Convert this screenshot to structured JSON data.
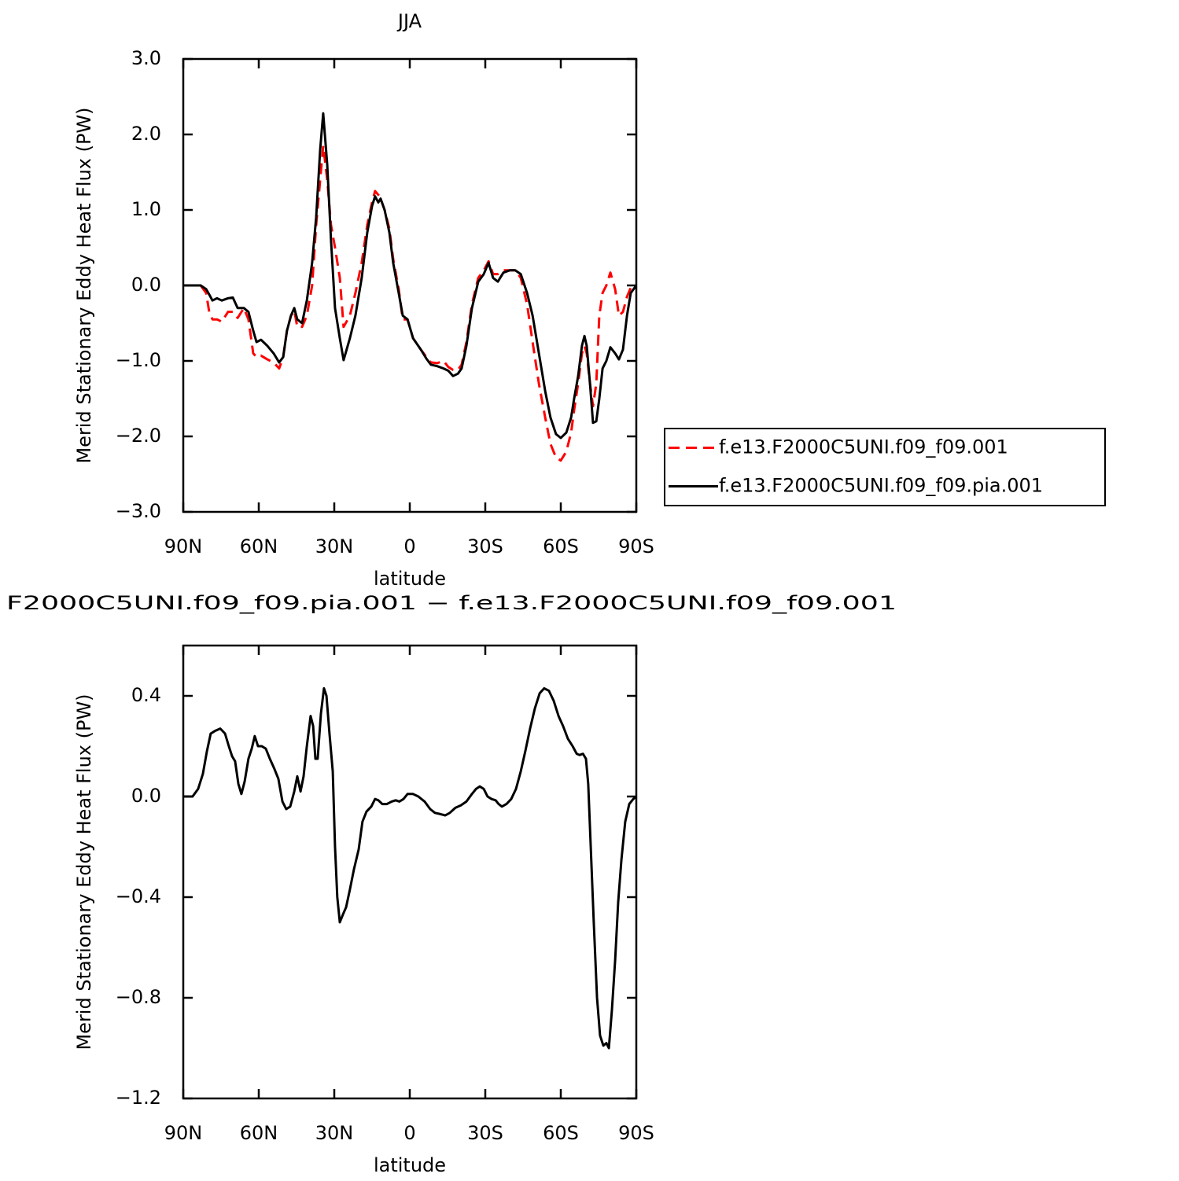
{
  "chart_data": [
    {
      "type": "line",
      "title": "JJA",
      "xlabel": "latitude",
      "ylabel": "Merid Stationary Eddy Heat Flux (PW)",
      "legend": "right",
      "xlim": [
        90,
        -90
      ],
      "ylim": [
        -3,
        3
      ],
      "xticks": [
        {
          "value": 90,
          "label": "90N"
        },
        {
          "value": 60,
          "label": "60N"
        },
        {
          "value": 30,
          "label": "30N"
        },
        0,
        {
          "value": -30,
          "label": "30S"
        },
        {
          "value": -60,
          "label": "60S"
        },
        {
          "value": -90,
          "label": "90S"
        }
      ],
      "yticks": [
        {
          "value": 3,
          "label": "3.0"
        },
        {
          "value": 2,
          "label": "2.0"
        },
        {
          "value": 1,
          "label": "1.0"
        },
        {
          "value": 0,
          "label": "0.0"
        },
        {
          "value": -1,
          "label": "−1.0"
        },
        {
          "value": -2,
          "label": "−2.0"
        },
        {
          "value": -3,
          "label": "−3.0"
        }
      ],
      "x": [
        90,
        83.1,
        80.9,
        79.7,
        78.4,
        76.6,
        74.7,
        72.2,
        70.3,
        68.4,
        65.9,
        64.1,
        62.2,
        60.9,
        59.1,
        56.6,
        54.1,
        51.9,
        50.3,
        48.8,
        47.2,
        45.9,
        44.7,
        42.8,
        40.9,
        38.8,
        37.2,
        35.6,
        34.4,
        32.8,
        31.3,
        29.7,
        27.8,
        26.3,
        23.8,
        21.6,
        19.1,
        16.9,
        15.0,
        13.8,
        12.5,
        11.6,
        10.0,
        8.1,
        6.6,
        4.4,
        2.8,
        0.9,
        -1.3,
        -4.4,
        -6.6,
        -8.4,
        -10.9,
        -13.4,
        -15.3,
        -17.2,
        -19.1,
        -20.6,
        -22.5,
        -24.7,
        -27.2,
        -29.4,
        -31.3,
        -33.1,
        -35.0,
        -37.2,
        -39.7,
        -41.9,
        -44.1,
        -46.6,
        -48.8,
        -51.3,
        -53.8,
        -55.9,
        -58.1,
        -60.0,
        -62.2,
        -64.1,
        -65.3,
        -66.9,
        -68.4,
        -69.4,
        -70.3,
        -71.6,
        -72.8,
        -74.1,
        -75.3,
        -76.6,
        -78.1,
        -79.7,
        -81.6,
        -83.1,
        -84.7,
        -86.3,
        -87.8,
        -90
      ],
      "series": [
        {
          "name": "f.e13.F2000C5UNI.f09_f09.001",
          "color": "#ff0000",
          "linestyle": "dashed",
          "values": [
            0,
            0,
            -0.1,
            -0.35,
            -0.45,
            -0.45,
            -0.48,
            -0.35,
            -0.35,
            -0.43,
            -0.3,
            -0.45,
            -0.9,
            -0.95,
            -0.93,
            -0.98,
            -1.02,
            -1.1,
            -0.95,
            -0.6,
            -0.4,
            -0.33,
            -0.55,
            -0.55,
            -0.4,
            0.0,
            0.8,
            1.4,
            1.85,
            1.4,
            0.8,
            0.5,
            0.1,
            -0.55,
            -0.4,
            -0.1,
            0.3,
            0.8,
            1.1,
            1.25,
            1.2,
            1.15,
            1.0,
            0.75,
            0.35,
            -0.05,
            -0.45,
            -0.45,
            -0.7,
            -0.85,
            -0.95,
            -1.02,
            -1.03,
            -1.0,
            -1.08,
            -1.12,
            -1.12,
            -1.05,
            -0.75,
            -0.25,
            0.1,
            0.2,
            0.32,
            0.15,
            0.15,
            0.2,
            0.2,
            0.2,
            0.1,
            -0.25,
            -0.75,
            -1.3,
            -1.75,
            -2.1,
            -2.28,
            -2.32,
            -2.2,
            -1.95,
            -1.65,
            -1.3,
            -0.9,
            -0.8,
            -0.9,
            -1.3,
            -1.6,
            -1.3,
            -0.4,
            -0.1,
            0.0,
            0.17,
            -0.05,
            -0.4,
            -0.35,
            -0.15,
            -0.03,
            0
          ]
        },
        {
          "name": "f.e13.F2000C5UNI.f09_f09.pia.001",
          "color": "#000000",
          "linestyle": "solid",
          "values": [
            0,
            0,
            -0.05,
            -0.12,
            -0.2,
            -0.17,
            -0.2,
            -0.17,
            -0.16,
            -0.3,
            -0.3,
            -0.35,
            -0.6,
            -0.75,
            -0.72,
            -0.8,
            -0.9,
            -1.02,
            -0.95,
            -0.6,
            -0.4,
            -0.3,
            -0.45,
            -0.5,
            -0.2,
            0.3,
            0.9,
            1.8,
            2.28,
            1.6,
            0.6,
            -0.3,
            -0.7,
            -0.99,
            -0.7,
            -0.4,
            0.1,
            0.7,
            1.05,
            1.18,
            1.1,
            1.15,
            1.0,
            0.7,
            0.3,
            -0.1,
            -0.4,
            -0.45,
            -0.7,
            -0.85,
            -0.97,
            -1.05,
            -1.07,
            -1.1,
            -1.13,
            -1.2,
            -1.17,
            -1.1,
            -0.8,
            -0.3,
            0.05,
            0.15,
            0.3,
            0.1,
            0.05,
            0.17,
            0.2,
            0.2,
            0.15,
            -0.1,
            -0.4,
            -0.9,
            -1.4,
            -1.75,
            -1.97,
            -2.02,
            -1.95,
            -1.75,
            -1.5,
            -1.2,
            -0.8,
            -0.67,
            -0.8,
            -1.3,
            -1.82,
            -1.8,
            -1.5,
            -1.1,
            -1.0,
            -0.82,
            -0.9,
            -0.98,
            -0.85,
            -0.4,
            -0.1,
            0
          ]
        }
      ]
    },
    {
      "type": "line",
      "title": "F2000C5UNI.f09_f09.pia.001 − f.e13.F2000C5UNI.f09_f09.001",
      "xlabel": "latitude",
      "ylabel": "Merid Stationary Eddy Heat Flux (PW)",
      "xlim": [
        90,
        -90
      ],
      "ylim": [
        -1.2,
        0.6
      ],
      "xticks": [
        {
          "value": 90,
          "label": "90N"
        },
        {
          "value": 60,
          "label": "60N"
        },
        {
          "value": 30,
          "label": "30N"
        },
        0,
        {
          "value": -30,
          "label": "30S"
        },
        {
          "value": -60,
          "label": "60S"
        },
        {
          "value": -90,
          "label": "90S"
        }
      ],
      "yticks": [
        0.4,
        {
          "value": 0,
          "label": "0.0"
        },
        {
          "value": -0.4,
          "label": "−0.4"
        },
        {
          "value": -0.8,
          "label": "−0.8"
        },
        {
          "value": -1.2,
          "label": "−1.2"
        }
      ],
      "x": [
        90,
        86.3,
        84.1,
        82.2,
        80.6,
        79.1,
        77.5,
        75.3,
        73.4,
        71.9,
        70.6,
        69.4,
        68.1,
        66.9,
        65.6,
        64.1,
        62.8,
        61.6,
        60.3,
        58.8,
        57.2,
        55.6,
        53.8,
        52.2,
        50.6,
        49.1,
        47.5,
        45.9,
        44.7,
        43.4,
        42.2,
        40.9,
        39.4,
        38.4,
        37.5,
        36.6,
        35.3,
        34.1,
        33.1,
        31.9,
        30.6,
        29.7,
        28.8,
        27.8,
        26.6,
        25.3,
        23.8,
        22.2,
        20.3,
        18.8,
        17.2,
        15.3,
        13.8,
        12.5,
        10.9,
        9.1,
        7.2,
        5.6,
        4.1,
        2.5,
        0.9,
        -1.3,
        -3.4,
        -5.9,
        -8.1,
        -10.0,
        -12.2,
        -14.1,
        -15.9,
        -18.1,
        -20.3,
        -22.5,
        -24.7,
        -26.3,
        -27.8,
        -29.4,
        -30.9,
        -32.5,
        -34.1,
        -35.3,
        -36.6,
        -38.4,
        -40.3,
        -42.2,
        -44.1,
        -45.9,
        -47.8,
        -49.7,
        -51.6,
        -53.4,
        -55.3,
        -57.2,
        -59.1,
        -60.9,
        -62.8,
        -64.7,
        -66.3,
        -67.5,
        -68.8,
        -70.0,
        -70.9,
        -71.9,
        -73.1,
        -74.4,
        -75.6,
        -76.9,
        -78.1,
        -79.1,
        -80.3,
        -81.6,
        -82.8,
        -84.1,
        -85.6,
        -87.2,
        -88.8,
        -90
      ],
      "series": [
        {
          "color": "#000000",
          "linestyle": "solid",
          "values": [
            0,
            0,
            0.03,
            0.09,
            0.18,
            0.25,
            0.26,
            0.27,
            0.25,
            0.2,
            0.16,
            0.14,
            0.05,
            0.01,
            0.06,
            0.15,
            0.19,
            0.24,
            0.2,
            0.2,
            0.19,
            0.15,
            0.11,
            0.07,
            -0.02,
            -0.05,
            -0.04,
            0.02,
            0.08,
            0.02,
            0.08,
            0.2,
            0.32,
            0.28,
            0.15,
            0.15,
            0.33,
            0.43,
            0.4,
            0.25,
            0.1,
            -0.2,
            -0.4,
            -0.5,
            -0.47,
            -0.44,
            -0.37,
            -0.29,
            -0.21,
            -0.1,
            -0.06,
            -0.04,
            -0.01,
            -0.015,
            -0.03,
            -0.03,
            -0.02,
            -0.015,
            -0.02,
            -0.01,
            0.01,
            0.01,
            0.0,
            -0.02,
            -0.05,
            -0.065,
            -0.07,
            -0.075,
            -0.065,
            -0.045,
            -0.035,
            -0.02,
            0.01,
            0.03,
            0.04,
            0.03,
            0.0,
            -0.01,
            -0.015,
            -0.03,
            -0.04,
            -0.03,
            -0.01,
            0.03,
            0.1,
            0.18,
            0.27,
            0.35,
            0.41,
            0.43,
            0.42,
            0.38,
            0.32,
            0.28,
            0.23,
            0.2,
            0.17,
            0.165,
            0.17,
            0.15,
            0.05,
            -0.2,
            -0.5,
            -0.8,
            -0.95,
            -0.99,
            -0.98,
            -1.0,
            -0.85,
            -0.65,
            -0.42,
            -0.25,
            -0.1,
            -0.03,
            -0.01,
            0
          ]
        }
      ]
    }
  ]
}
